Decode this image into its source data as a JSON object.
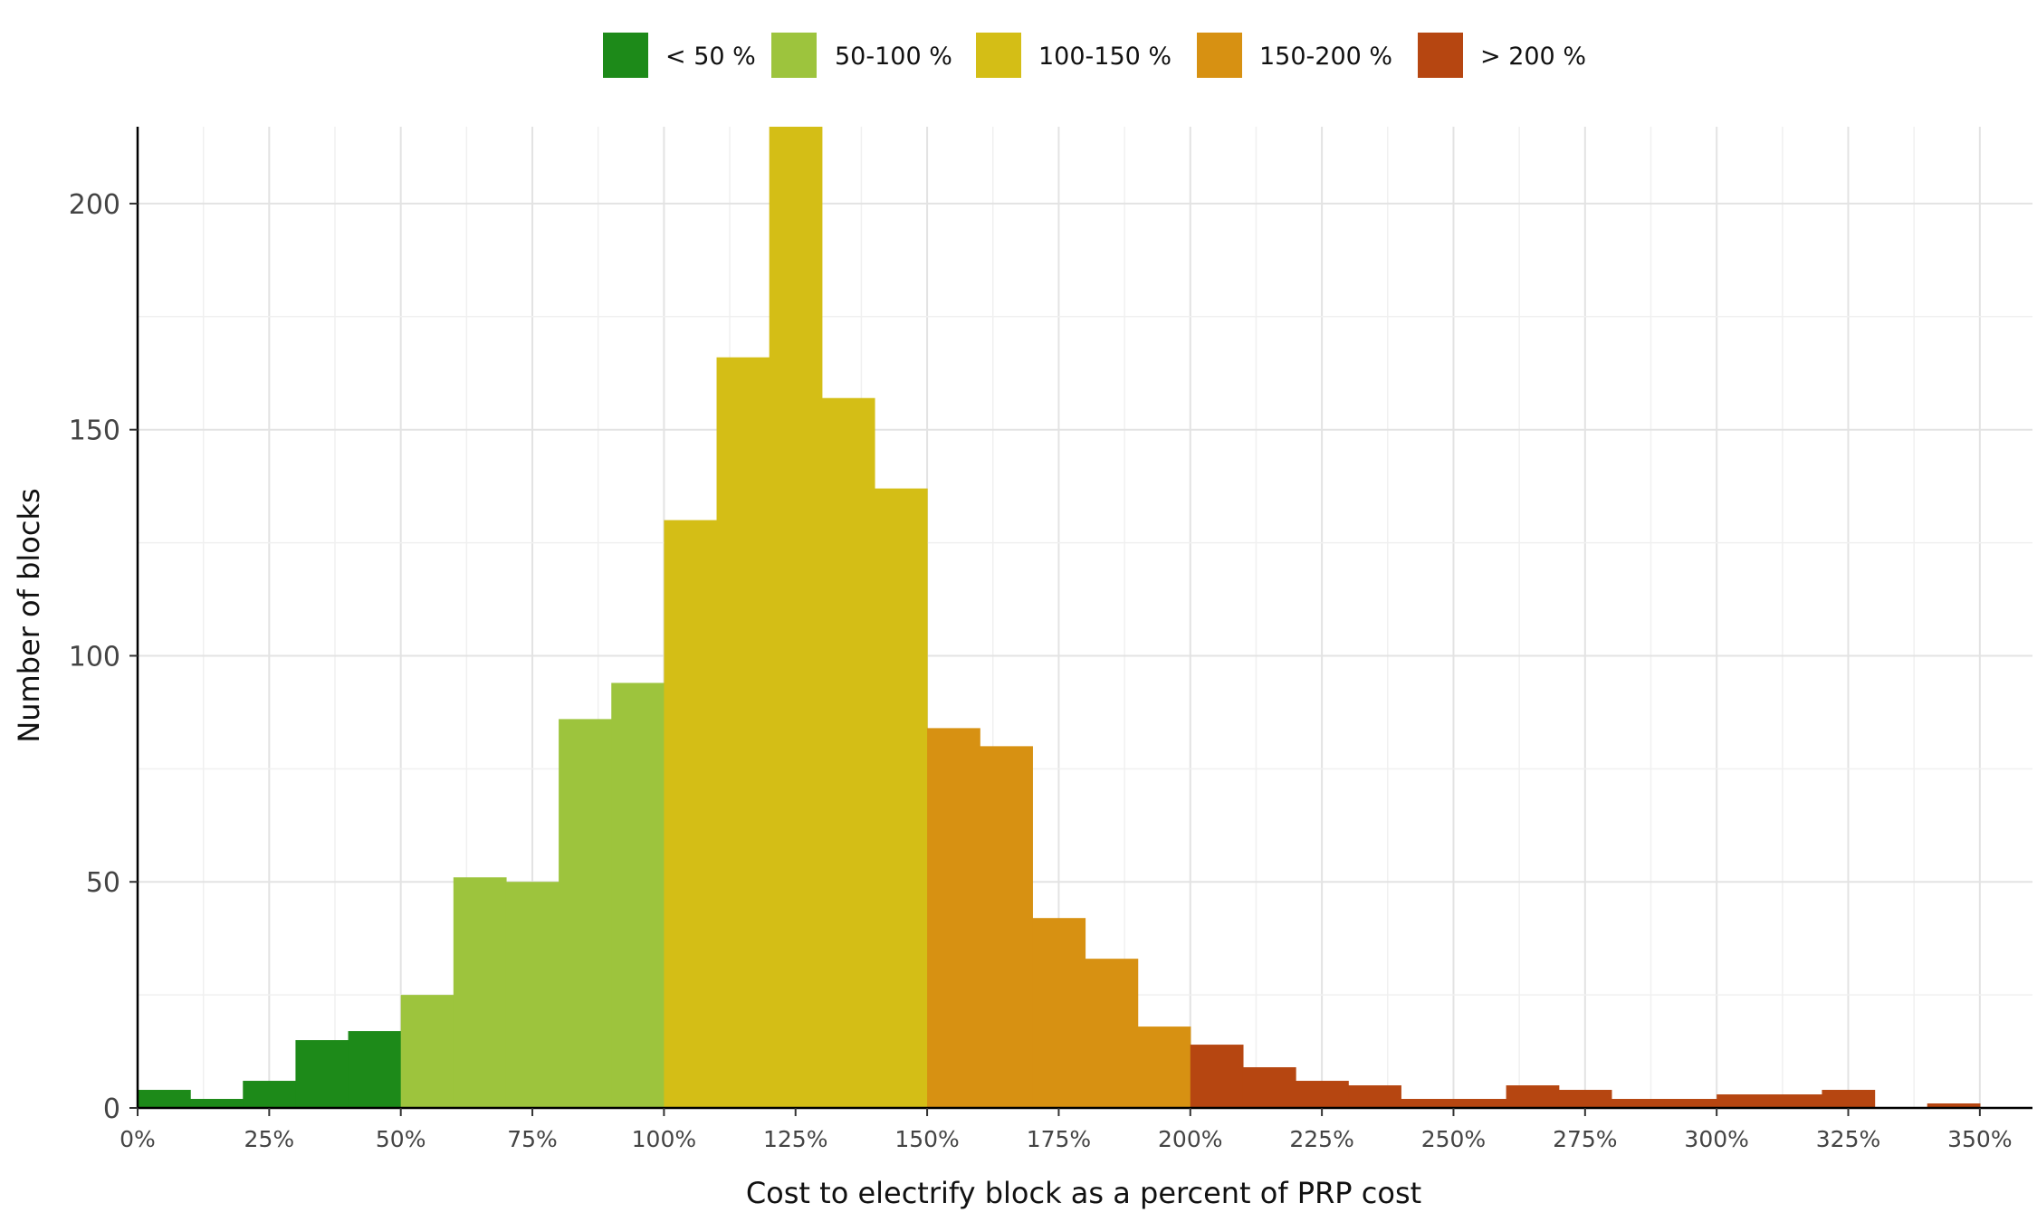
{
  "chart_data": {
    "type": "bar",
    "title": "",
    "xlabel": "Cost to electrify block as a percent of PRP cost",
    "ylabel": "Number of blocks",
    "xlim": [
      0,
      360
    ],
    "ylim": [
      0,
      217
    ],
    "bin_width": 10,
    "x_ticks": [
      0,
      25,
      50,
      75,
      100,
      125,
      150,
      175,
      200,
      225,
      250,
      275,
      300,
      325,
      350
    ],
    "x_tick_labels": [
      "0%",
      "25%",
      "50%",
      "75%",
      "100%",
      "125%",
      "150%",
      "175%",
      "200%",
      "225%",
      "250%",
      "275%",
      "300%",
      "325%",
      "350%"
    ],
    "y_ticks": [
      0,
      50,
      100,
      150,
      200
    ],
    "y_tick_labels": [
      "0",
      "50",
      "100",
      "150",
      "200"
    ],
    "grid": true,
    "legend_position": "top",
    "legend": [
      {
        "label": "< 50 %",
        "color": "#1d8a19"
      },
      {
        "label": "50-100 %",
        "color": "#9dc43d"
      },
      {
        "label": "100-150 %",
        "color": "#d4be16"
      },
      {
        "label": "150-200 %",
        "color": "#d79112"
      },
      {
        "label": "> 200 %",
        "color": "#b64611"
      }
    ],
    "bins": [
      {
        "x0": 0,
        "x1": 10,
        "count": 4,
        "group": 0
      },
      {
        "x0": 10,
        "x1": 20,
        "count": 2,
        "group": 0
      },
      {
        "x0": 20,
        "x1": 30,
        "count": 6,
        "group": 0
      },
      {
        "x0": 30,
        "x1": 40,
        "count": 15,
        "group": 0
      },
      {
        "x0": 40,
        "x1": 50,
        "count": 17,
        "group": 0
      },
      {
        "x0": 50,
        "x1": 60,
        "count": 25,
        "group": 1
      },
      {
        "x0": 60,
        "x1": 70,
        "count": 51,
        "group": 1
      },
      {
        "x0": 70,
        "x1": 80,
        "count": 50,
        "group": 1
      },
      {
        "x0": 80,
        "x1": 90,
        "count": 86,
        "group": 1
      },
      {
        "x0": 90,
        "x1": 100,
        "count": 94,
        "group": 1
      },
      {
        "x0": 100,
        "x1": 110,
        "count": 130,
        "group": 2
      },
      {
        "x0": 110,
        "x1": 120,
        "count": 166,
        "group": 2
      },
      {
        "x0": 120,
        "x1": 130,
        "count": 217,
        "group": 2
      },
      {
        "x0": 130,
        "x1": 140,
        "count": 157,
        "group": 2
      },
      {
        "x0": 140,
        "x1": 150,
        "count": 137,
        "group": 2
      },
      {
        "x0": 150,
        "x1": 160,
        "count": 84,
        "group": 3
      },
      {
        "x0": 160,
        "x1": 170,
        "count": 80,
        "group": 3
      },
      {
        "x0": 170,
        "x1": 180,
        "count": 42,
        "group": 3
      },
      {
        "x0": 180,
        "x1": 190,
        "count": 33,
        "group": 3
      },
      {
        "x0": 190,
        "x1": 200,
        "count": 18,
        "group": 3
      },
      {
        "x0": 200,
        "x1": 210,
        "count": 14,
        "group": 4
      },
      {
        "x0": 210,
        "x1": 220,
        "count": 9,
        "group": 4
      },
      {
        "x0": 220,
        "x1": 230,
        "count": 6,
        "group": 4
      },
      {
        "x0": 230,
        "x1": 240,
        "count": 5,
        "group": 4
      },
      {
        "x0": 240,
        "x1": 250,
        "count": 2,
        "group": 4
      },
      {
        "x0": 250,
        "x1": 260,
        "count": 2,
        "group": 4
      },
      {
        "x0": 260,
        "x1": 270,
        "count": 5,
        "group": 4
      },
      {
        "x0": 270,
        "x1": 280,
        "count": 4,
        "group": 4
      },
      {
        "x0": 280,
        "x1": 290,
        "count": 2,
        "group": 4
      },
      {
        "x0": 290,
        "x1": 300,
        "count": 2,
        "group": 4
      },
      {
        "x0": 300,
        "x1": 310,
        "count": 3,
        "group": 4
      },
      {
        "x0": 310,
        "x1": 320,
        "count": 3,
        "group": 4
      },
      {
        "x0": 320,
        "x1": 330,
        "count": 4,
        "group": 4
      },
      {
        "x0": 330,
        "x1": 340,
        "count": 0,
        "group": 4
      },
      {
        "x0": 340,
        "x1": 350,
        "count": 1,
        "group": 4
      }
    ]
  }
}
